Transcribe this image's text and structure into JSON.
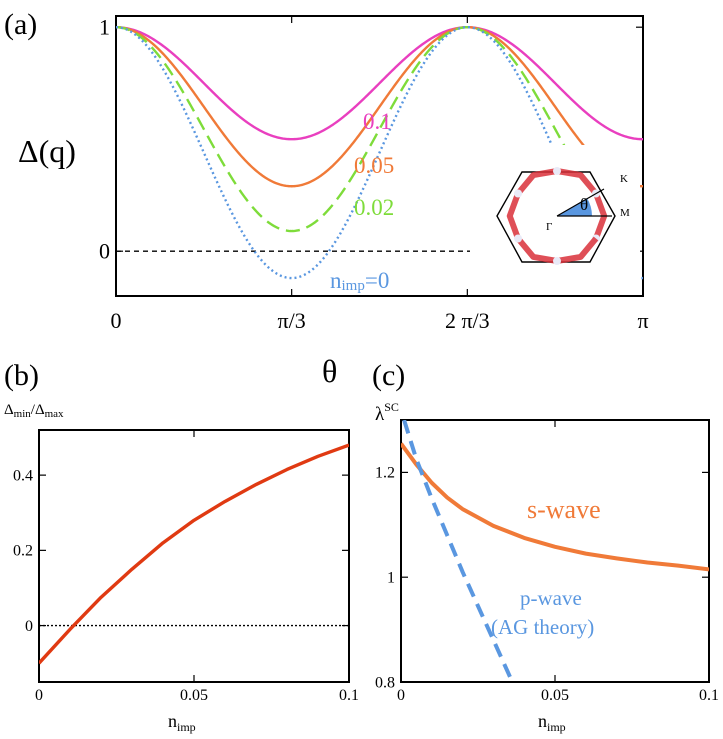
{
  "chart_data": [
    {
      "id": "a",
      "type": "line",
      "panel_label": "(a)",
      "xlabel": "θ",
      "ylabel": "Δ(q)",
      "xlim": [
        0,
        3.14159
      ],
      "ylim": [
        -0.2,
        1.05
      ],
      "x_ticks": [
        {
          "value": 0,
          "label": "0"
        },
        {
          "value": 1.0472,
          "label": "π/3"
        },
        {
          "value": 2.0944,
          "label": "2 π/3"
        },
        {
          "value": 3.14159,
          "label": "π"
        }
      ],
      "y_ticks": [
        {
          "value": 0,
          "label": "0"
        },
        {
          "value": 1,
          "label": "1"
        }
      ],
      "zero_line": true,
      "series": [
        {
          "name": "0.1",
          "minimum": 0.5,
          "color": "#e93fbf",
          "style": "solid"
        },
        {
          "name": "0.05",
          "minimum": 0.29,
          "color": "#f07a38",
          "style": "solid"
        },
        {
          "name": "0.02",
          "minimum": 0.09,
          "color": "#7edc3a",
          "style": "dashed"
        },
        {
          "name_prefix": "n",
          "name_sub": "imp",
          "name_suffix": "=0",
          "minimum": -0.12,
          "color": "#5a97e0",
          "style": "dotted"
        }
      ],
      "inset": {
        "labels": {
          "gamma": "Γ",
          "k": "K",
          "m": "M",
          "theta": "θ"
        }
      }
    },
    {
      "id": "b",
      "type": "line",
      "panel_label": "(b)",
      "ylabel_main": "Δ",
      "ylabel_sub1": "min",
      "ylabel_mid": "/Δ",
      "ylabel_sub2": "max",
      "xlabel_main": "n",
      "xlabel_sub": "imp",
      "xlim": [
        0,
        0.1
      ],
      "ylim": [
        -0.15,
        0.52
      ],
      "x_ticks": [
        {
          "value": 0,
          "label": "0"
        },
        {
          "value": 0.05,
          "label": "0.05"
        },
        {
          "value": 0.1,
          "label": "0.1"
        }
      ],
      "y_ticks": [
        {
          "value": 0,
          "label": "0"
        },
        {
          "value": 0.2,
          "label": "0.2"
        },
        {
          "value": 0.4,
          "label": "0.4"
        }
      ],
      "zero_line": true,
      "series": [
        {
          "name": "Δmin/Δmax",
          "color": "#e03a12",
          "x": [
            0,
            0.01,
            0.02,
            0.03,
            0.04,
            0.05,
            0.06,
            0.07,
            0.08,
            0.09,
            0.1
          ],
          "y": [
            -0.1,
            -0.01,
            0.075,
            0.15,
            0.22,
            0.28,
            0.33,
            0.375,
            0.415,
            0.45,
            0.48
          ]
        }
      ]
    },
    {
      "id": "c",
      "type": "line",
      "panel_label": "(c)",
      "ylabel_main": "λ",
      "ylabel_sup": "SC",
      "xlabel_main": "n",
      "xlabel_sub": "imp",
      "xlim": [
        0,
        0.1
      ],
      "ylim": [
        0.8,
        1.3
      ],
      "x_ticks": [
        {
          "value": 0,
          "label": "0"
        },
        {
          "value": 0.05,
          "label": "0.05"
        },
        {
          "value": 0.1,
          "label": "0.1"
        }
      ],
      "y_ticks": [
        {
          "value": 0.8,
          "label": "0.8"
        },
        {
          "value": 1.0,
          "label": "1"
        },
        {
          "value": 1.2,
          "label": "1.2"
        }
      ],
      "series": [
        {
          "name": "s-wave",
          "color": "#f07a38",
          "style": "solid",
          "x": [
            0,
            0.005,
            0.01,
            0.015,
            0.02,
            0.03,
            0.04,
            0.05,
            0.06,
            0.07,
            0.08,
            0.09,
            0.1
          ],
          "y": [
            1.255,
            1.215,
            1.18,
            1.152,
            1.13,
            1.098,
            1.075,
            1.058,
            1.045,
            1.036,
            1.028,
            1.022,
            1.015
          ]
        },
        {
          "name": "p-wave",
          "name_line2": "(AG theory)",
          "color": "#5a97e0",
          "style": "dashed",
          "x": [
            0.001,
            0.005,
            0.01,
            0.015,
            0.02,
            0.025,
            0.03,
            0.035,
            0.0365
          ],
          "y": [
            1.3,
            1.225,
            1.15,
            1.08,
            1.01,
            0.945,
            0.88,
            0.815,
            0.795
          ]
        }
      ]
    }
  ]
}
